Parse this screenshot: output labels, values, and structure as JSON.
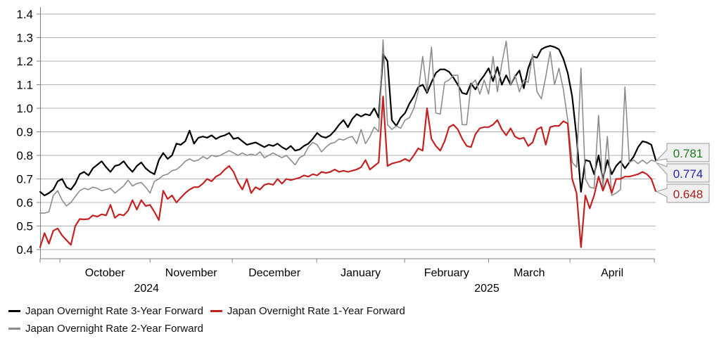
{
  "chart_data": {
    "type": "line",
    "y_axis": {
      "ticks": [
        "1.4",
        "1.3",
        "1.2",
        "1.1",
        "1.0",
        "0.9",
        "0.8",
        "0.7",
        "0.6",
        "0.5",
        "0.4"
      ],
      "min": 0.4,
      "max": 1.4
    },
    "x_axis": {
      "month_ticks": [
        {
          "label": "October",
          "start": 4.5,
          "end": 25
        },
        {
          "label": "November",
          "start": 25,
          "end": 43.7
        },
        {
          "label": "December",
          "start": 43.7,
          "end": 62.9
        },
        {
          "label": "January",
          "start": 62.9,
          "end": 82.9
        },
        {
          "label": "February",
          "start": 82.9,
          "end": 102
        },
        {
          "label": "March",
          "start": 102,
          "end": 120.5
        },
        {
          "label": "April",
          "start": 120.5,
          "end": 139.7
        }
      ],
      "year_labels": [
        {
          "label": "2024",
          "pos": 24.2
        },
        {
          "label": "2025",
          "pos": 101.6
        }
      ]
    },
    "series": [
      {
        "name": "Japan Overnight Rate 3-Year Forward",
        "color": "#000000",
        "stroke_width": 2.2,
        "values": [
          0.645,
          0.63,
          0.64,
          0.655,
          0.69,
          0.7,
          0.665,
          0.655,
          0.68,
          0.72,
          0.73,
          0.715,
          0.745,
          0.76,
          0.775,
          0.75,
          0.73,
          0.755,
          0.76,
          0.775,
          0.75,
          0.73,
          0.755,
          0.77,
          0.745,
          0.73,
          0.72,
          0.78,
          0.81,
          0.785,
          0.8,
          0.85,
          0.845,
          0.86,
          0.905,
          0.85,
          0.875,
          0.88,
          0.875,
          0.885,
          0.87,
          0.88,
          0.885,
          0.895,
          0.87,
          0.875,
          0.86,
          0.845,
          0.85,
          0.855,
          0.845,
          0.835,
          0.845,
          0.84,
          0.85,
          0.835,
          0.825,
          0.84,
          0.82,
          0.825,
          0.84,
          0.85,
          0.87,
          0.895,
          0.88,
          0.875,
          0.885,
          0.905,
          0.93,
          0.95,
          0.92,
          0.955,
          0.975,
          0.965,
          0.975,
          0.97,
          1.0,
          0.96,
          1.23,
          1.2,
          0.95,
          0.925,
          0.96,
          0.98,
          1.02,
          1.05,
          1.09,
          1.1,
          1.065,
          1.11,
          1.15,
          1.165,
          1.165,
          1.155,
          1.13,
          1.1,
          1.065,
          1.06,
          1.105,
          1.08,
          1.115,
          1.14,
          1.17,
          1.115,
          1.175,
          1.1,
          1.14,
          1.1,
          1.135,
          1.16,
          1.085,
          1.17,
          1.22,
          1.215,
          1.25,
          1.26,
          1.265,
          1.26,
          1.25,
          1.21,
          1.15,
          1.05,
          0.88,
          0.645,
          0.78,
          0.775,
          0.72,
          0.8,
          0.7,
          0.78,
          0.72,
          0.755,
          0.775,
          0.745,
          0.77,
          0.795,
          0.835,
          0.86,
          0.855,
          0.845,
          0.781
        ]
      },
      {
        "name": "Japan Overnight Rate 2-Year Forward",
        "color": "#8c8c8c",
        "stroke_width": 1.6,
        "values": [
          0.555,
          0.555,
          0.56,
          0.63,
          0.65,
          0.61,
          0.585,
          0.6,
          0.625,
          0.65,
          0.66,
          0.655,
          0.665,
          0.66,
          0.65,
          0.655,
          0.66,
          0.64,
          0.655,
          0.67,
          0.695,
          0.67,
          0.68,
          0.685,
          0.665,
          0.64,
          0.69,
          0.7,
          0.715,
          0.72,
          0.735,
          0.74,
          0.755,
          0.775,
          0.785,
          0.775,
          0.78,
          0.795,
          0.785,
          0.8,
          0.795,
          0.8,
          0.81,
          0.82,
          0.81,
          0.8,
          0.81,
          0.8,
          0.805,
          0.8,
          0.815,
          0.79,
          0.8,
          0.81,
          0.8,
          0.79,
          0.8,
          0.78,
          0.76,
          0.79,
          0.8,
          0.835,
          0.855,
          0.845,
          0.815,
          0.835,
          0.85,
          0.855,
          0.87,
          0.865,
          0.875,
          0.88,
          0.85,
          0.91,
          0.85,
          0.88,
          0.92,
          0.9,
          1.29,
          0.93,
          0.91,
          0.925,
          0.915,
          0.95,
          0.96,
          1.0,
          1.07,
          1.22,
          1.07,
          1.26,
          0.98,
          0.975,
          1.11,
          1.12,
          1.14,
          1.14,
          0.93,
          0.93,
          1.1,
          1.12,
          1.06,
          1.12,
          1.06,
          1.22,
          1.07,
          1.19,
          1.285,
          1.1,
          1.14,
          1.07,
          1.12,
          1.11,
          1.23,
          1.07,
          1.04,
          1.135,
          1.24,
          1.1,
          1.17,
          1.08,
          0.95,
          0.77,
          0.75,
          1.17,
          0.7,
          0.665,
          0.66,
          0.97,
          0.66,
          0.88,
          0.63,
          0.64,
          0.655,
          1.09,
          0.77,
          0.78,
          0.765,
          0.78,
          0.765,
          0.78,
          0.774
        ]
      },
      {
        "name": "Japan Overnight Rate 1-Year Forward",
        "color": "#c32222",
        "stroke_width": 2.2,
        "values": [
          0.41,
          0.47,
          0.425,
          0.48,
          0.49,
          0.46,
          0.44,
          0.42,
          0.5,
          0.53,
          0.528,
          0.53,
          0.545,
          0.54,
          0.55,
          0.545,
          0.59,
          0.535,
          0.55,
          0.545,
          0.565,
          0.61,
          0.57,
          0.61,
          0.585,
          0.59,
          0.56,
          0.525,
          0.65,
          0.615,
          0.63,
          0.6,
          0.62,
          0.64,
          0.655,
          0.665,
          0.665,
          0.68,
          0.7,
          0.69,
          0.71,
          0.72,
          0.74,
          0.755,
          0.73,
          0.685,
          0.655,
          0.7,
          0.64,
          0.665,
          0.655,
          0.675,
          0.68,
          0.675,
          0.7,
          0.68,
          0.7,
          0.695,
          0.7,
          0.705,
          0.715,
          0.71,
          0.72,
          0.715,
          0.73,
          0.725,
          0.73,
          0.74,
          0.73,
          0.735,
          0.73,
          0.735,
          0.74,
          0.75,
          0.78,
          0.74,
          0.755,
          0.77,
          1.05,
          0.755,
          0.765,
          0.77,
          0.775,
          0.785,
          0.775,
          0.8,
          0.83,
          0.82,
          1.0,
          0.87,
          0.84,
          0.82,
          0.86,
          0.92,
          0.93,
          0.91,
          0.87,
          0.84,
          0.835,
          0.89,
          0.915,
          0.92,
          0.92,
          0.93,
          0.95,
          0.91,
          0.885,
          0.915,
          0.88,
          0.87,
          0.875,
          0.84,
          0.855,
          0.91,
          0.92,
          0.845,
          0.92,
          0.925,
          0.925,
          0.945,
          0.935,
          0.7,
          0.64,
          0.41,
          0.63,
          0.575,
          0.63,
          0.71,
          0.65,
          0.7,
          0.64,
          0.7,
          0.7,
          0.71,
          0.71,
          0.715,
          0.72,
          0.73,
          0.72,
          0.7,
          0.648
        ]
      }
    ],
    "end_labels": [
      {
        "value": "0.781",
        "series": "Japan Overnight Rate 3-Year Forward",
        "color": "#1f7a1f"
      },
      {
        "value": "0.774",
        "series": "Japan Overnight Rate 2-Year Forward",
        "color": "#2424b0"
      },
      {
        "value": "0.648",
        "series": "Japan Overnight Rate 1-Year Forward",
        "color": "#a32222"
      }
    ],
    "colors": {
      "gridline": "#b0b0b0",
      "axis": "#7f7f7f",
      "callout_background": "#f0f0f0",
      "callout_border": "#999999"
    }
  }
}
